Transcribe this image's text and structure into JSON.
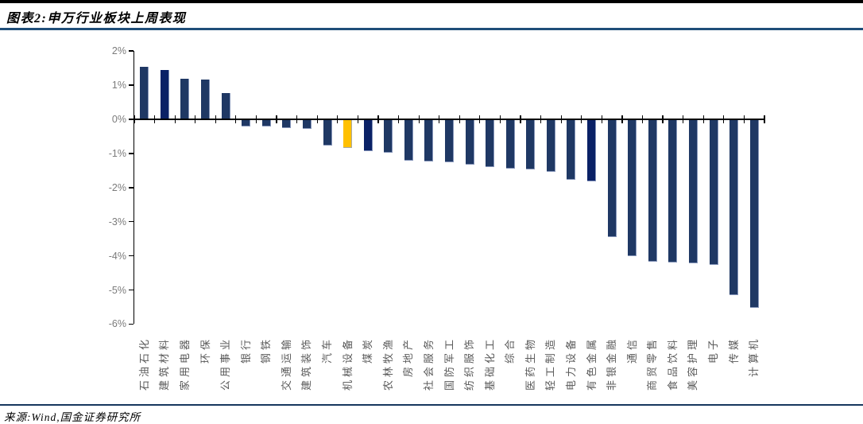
{
  "header": {
    "title": "图表2:申万行业板块上周表现"
  },
  "footer": {
    "source": "来源:Wind,国金证券研究所"
  },
  "chart_data": {
    "type": "bar",
    "title": "申万行业板块上周表现",
    "xlabel": "",
    "ylabel": "",
    "ylim": [
      -6,
      2
    ],
    "grid": false,
    "legend": "none",
    "unit": "%",
    "ytick_values": [
      2,
      1,
      0,
      -1,
      -2,
      -3,
      -4,
      -5,
      -6
    ],
    "ytick_labels": [
      "2%",
      "1%",
      "0%",
      "-1%",
      "-2%",
      "-3%",
      "-4%",
      "-5%",
      "-6%"
    ],
    "categories": [
      "石油石化",
      "建筑材料",
      "家用电器",
      "环保",
      "公用事业",
      "银行",
      "钢铁",
      "交通运输",
      "建筑装饰",
      "汽车",
      "机械设备",
      "煤炭",
      "农林牧渔",
      "房地产",
      "社会服务",
      "国防军工",
      "纺织服饰",
      "基础化工",
      "综合",
      "医药生物",
      "轻工制造",
      "电力设备",
      "有色金属",
      "非银金融",
      "通信",
      "商贸零售",
      "食品饮料",
      "美容护理",
      "电子",
      "传媒",
      "计算机"
    ],
    "values": [
      1.55,
      1.45,
      1.2,
      1.17,
      0.78,
      -0.2,
      -0.22,
      -0.26,
      -0.28,
      -0.78,
      -0.85,
      -0.93,
      -0.98,
      -1.22,
      -1.24,
      -1.25,
      -1.33,
      -1.4,
      -1.44,
      -1.46,
      -1.54,
      -1.77,
      -1.82,
      -3.45,
      -4.02,
      -4.17,
      -4.2,
      -4.23,
      -4.27,
      -5.15,
      -5.52
    ],
    "highlight_category": "机械设备",
    "dark_categories": [
      "建筑材料",
      "煤炭",
      "有色金属"
    ],
    "colors": {
      "default": "#1F3864",
      "dark": "#0A2166",
      "highlight": "#FFC000",
      "axis": "#000000",
      "ytick_text": "#7B7B7B",
      "xtick_text": "#5A5A5A",
      "title_rule": "#1F4E79",
      "source_rule": "#17375E"
    }
  }
}
